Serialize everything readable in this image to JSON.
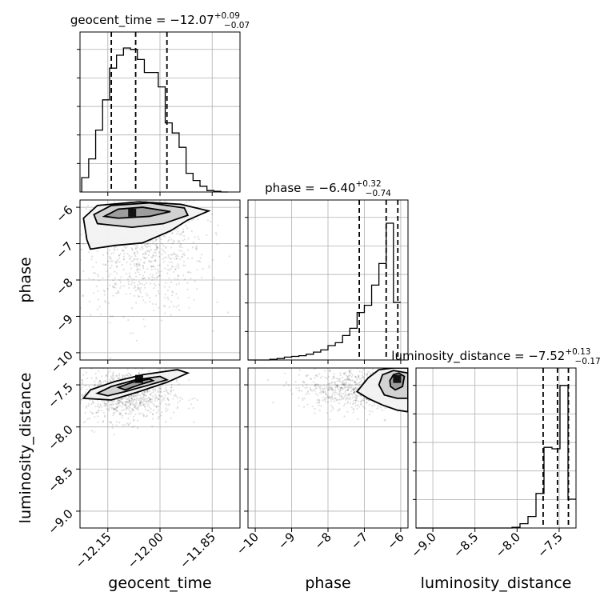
{
  "chart_data": {
    "type": "corner",
    "parameters": [
      {
        "name": "geocent_time",
        "label": "geocent_time",
        "title": {
          "base": "geocent_time = −12.07",
          "upper": "+0.09",
          "lower": "−0.07"
        },
        "range": [
          -12.23,
          -11.77
        ],
        "ticks": [
          -12.15,
          -12.0,
          -11.85
        ],
        "tick_labels": [
          "−12.15",
          "−12.00",
          "−11.85"
        ],
        "quantiles": [
          -12.14,
          -12.07,
          -11.98
        ],
        "hist": {
          "edges_start": -12.225,
          "bin_width": 0.02,
          "counts": [
            0.1,
            0.23,
            0.43,
            0.64,
            0.86,
            0.95,
            1.0,
            0.99,
            0.92,
            0.83,
            0.83,
            0.73,
            0.48,
            0.41,
            0.31,
            0.13,
            0.08,
            0.04,
            0.01,
            0.005,
            0.0
          ]
        }
      },
      {
        "name": "phase",
        "label": "phase",
        "title": {
          "base": "phase = −6.40",
          "upper": "+0.32",
          "lower": "−0.74"
        },
        "range": [
          -10.2,
          -5.8
        ],
        "ticks": [
          -10,
          -9,
          -8,
          -7,
          -6
        ],
        "tick_labels": [
          "−10",
          "−9",
          "−8",
          "−7",
          "−6"
        ],
        "quantiles": [
          -7.14,
          -6.4,
          -6.08
        ],
        "hist": {
          "edges_start": -10.2,
          "bin_width": 0.2,
          "counts": [
            0.0,
            0.0,
            0.0,
            0.005,
            0.01,
            0.02,
            0.025,
            0.03,
            0.04,
            0.055,
            0.07,
            0.1,
            0.12,
            0.17,
            0.22,
            0.33,
            0.38,
            0.52,
            0.67,
            0.95,
            0.4
          ]
        }
      },
      {
        "name": "luminosity_distance",
        "label": "luminosity_distance",
        "title": {
          "base": "luminosity_distance = −7.52",
          "upper": "+0.13",
          "lower": "−0.17"
        },
        "range": [
          -9.2,
          -7.3
        ],
        "ticks": [
          -9.0,
          -8.5,
          -8.0,
          -7.5
        ],
        "tick_labels": [
          "−9.0",
          "−8.5",
          "−8.0",
          "−7.5"
        ],
        "quantiles": [
          -7.69,
          -7.52,
          -7.39
        ],
        "hist": {
          "edges_start": -9.2,
          "bin_width": 0.095,
          "counts": [
            0.0,
            0.0,
            0.0,
            0.0,
            0.0,
            0.0,
            0.0,
            0.0,
            0.0,
            0.0,
            0.0,
            0.0,
            0.005,
            0.03,
            0.08,
            0.24,
            0.56,
            0.55,
            0.99,
            0.2
          ]
        }
      }
    ],
    "pairs": [
      {
        "x": "geocent_time",
        "y": "phase",
        "scatter_center": [
          -12.05,
          -7.1
        ],
        "scatter_spread": [
          0.09,
          0.9
        ],
        "density_peak": [
          -12.08,
          -6.15
        ],
        "contours": [
          [
            [
              -12.16,
              -6.25
            ],
            [
              -12.12,
              -6.05
            ],
            [
              -12.05,
              -6.0
            ],
            [
              -11.97,
              -6.12
            ],
            [
              -12.03,
              -6.25
            ],
            [
              -12.12,
              -6.3
            ]
          ],
          [
            [
              -12.19,
              -6.2
            ],
            [
              -12.14,
              -5.95
            ],
            [
              -12.03,
              -5.88
            ],
            [
              -11.93,
              -6.02
            ],
            [
              -11.92,
              -6.22
            ],
            [
              -11.99,
              -6.45
            ],
            [
              -12.08,
              -6.55
            ],
            [
              -12.18,
              -6.45
            ]
          ],
          [
            [
              -12.22,
              -6.3
            ],
            [
              -12.18,
              -5.95
            ],
            [
              -12.06,
              -5.85
            ],
            [
              -11.94,
              -5.92
            ],
            [
              -11.86,
              -6.1
            ],
            [
              -11.92,
              -6.35
            ],
            [
              -11.97,
              -6.65
            ],
            [
              -12.05,
              -6.98
            ],
            [
              -12.13,
              -7.05
            ],
            [
              -12.2,
              -7.15
            ],
            [
              -12.21,
              -6.9
            ]
          ]
        ]
      },
      {
        "x": "geocent_time",
        "y": "luminosity_distance",
        "scatter_center": [
          -12.1,
          -7.62
        ],
        "scatter_spread": [
          0.07,
          0.15
        ],
        "density_peak": [
          -12.06,
          -7.43
        ],
        "contours": [
          [
            [
              -12.12,
              -7.53
            ],
            [
              -12.08,
              -7.47
            ],
            [
              -12.03,
              -7.43
            ],
            [
              -12.02,
              -7.45
            ],
            [
              -12.06,
              -7.5
            ],
            [
              -12.1,
              -7.56
            ]
          ],
          [
            [
              -12.18,
              -7.6
            ],
            [
              -12.14,
              -7.52
            ],
            [
              -12.07,
              -7.44
            ],
            [
              -12.0,
              -7.4
            ],
            [
              -11.98,
              -7.44
            ],
            [
              -12.03,
              -7.5
            ],
            [
              -12.1,
              -7.58
            ],
            [
              -12.15,
              -7.63
            ]
          ],
          [
            [
              -12.22,
              -7.66
            ],
            [
              -12.2,
              -7.56
            ],
            [
              -12.13,
              -7.46
            ],
            [
              -12.05,
              -7.38
            ],
            [
              -11.95,
              -7.32
            ],
            [
              -11.92,
              -7.36
            ],
            [
              -11.98,
              -7.47
            ],
            [
              -12.06,
              -7.58
            ],
            [
              -12.14,
              -7.68
            ]
          ]
        ]
      },
      {
        "x": "phase",
        "y": "luminosity_distance",
        "scatter_center": [
          -7.0,
          -7.55
        ],
        "scatter_spread": [
          0.9,
          0.12
        ],
        "density_peak": [
          -6.1,
          -7.43
        ],
        "contours": [
          [
            [
              -6.3,
              -7.45
            ],
            [
              -6.2,
              -7.38
            ],
            [
              -6.05,
              -7.36
            ],
            [
              -5.9,
              -7.4
            ],
            [
              -5.95,
              -7.52
            ],
            [
              -6.15,
              -7.56
            ],
            [
              -6.28,
              -7.52
            ]
          ],
          [
            [
              -6.6,
              -7.5
            ],
            [
              -6.5,
              -7.38
            ],
            [
              -6.2,
              -7.33
            ],
            [
              -5.8,
              -7.36
            ],
            [
              -5.8,
              -7.66
            ],
            [
              -6.1,
              -7.66
            ],
            [
              -6.45,
              -7.62
            ]
          ],
          [
            [
              -7.2,
              -7.58
            ],
            [
              -6.9,
              -7.42
            ],
            [
              -6.6,
              -7.32
            ],
            [
              -6.2,
              -7.3
            ],
            [
              -5.8,
              -7.3
            ],
            [
              -5.8,
              -7.82
            ],
            [
              -6.1,
              -7.8
            ],
            [
              -6.5,
              -7.74
            ],
            [
              -6.9,
              -7.66
            ]
          ]
        ]
      }
    ]
  }
}
